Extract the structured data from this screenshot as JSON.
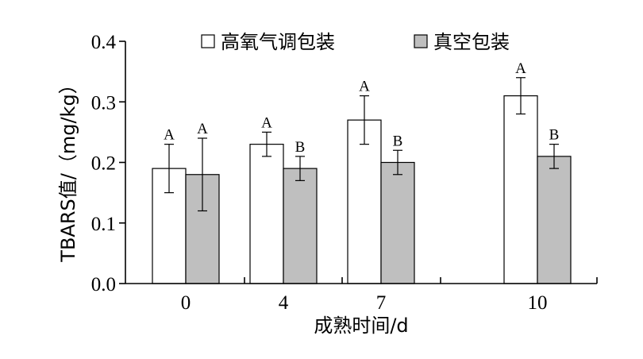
{
  "chart_data": {
    "type": "bar",
    "title": "",
    "xlabel": "成熟时间/d",
    "ylabel": "TBARS值/（mg/kg）",
    "categories": [
      "0",
      "4",
      "7",
      "10"
    ],
    "ylim": [
      0,
      0.4
    ],
    "yticks": [
      "0.0",
      "0.1",
      "0.2",
      "0.3",
      "0.4"
    ],
    "legend_position": "top",
    "series": [
      {
        "name": "高氧气调包装",
        "color": "#ffffff",
        "values": [
          0.19,
          0.23,
          0.27,
          0.31
        ],
        "errors": [
          0.04,
          0.02,
          0.04,
          0.03
        ],
        "labels": [
          "A",
          "A",
          "A",
          "A"
        ]
      },
      {
        "name": "真空包装",
        "color": "#bfbfbf",
        "values": [
          0.18,
          0.19,
          0.2,
          0.21
        ],
        "errors": [
          0.06,
          0.02,
          0.02,
          0.02
        ],
        "labels": [
          "A",
          "B",
          "B",
          "B"
        ]
      }
    ]
  }
}
